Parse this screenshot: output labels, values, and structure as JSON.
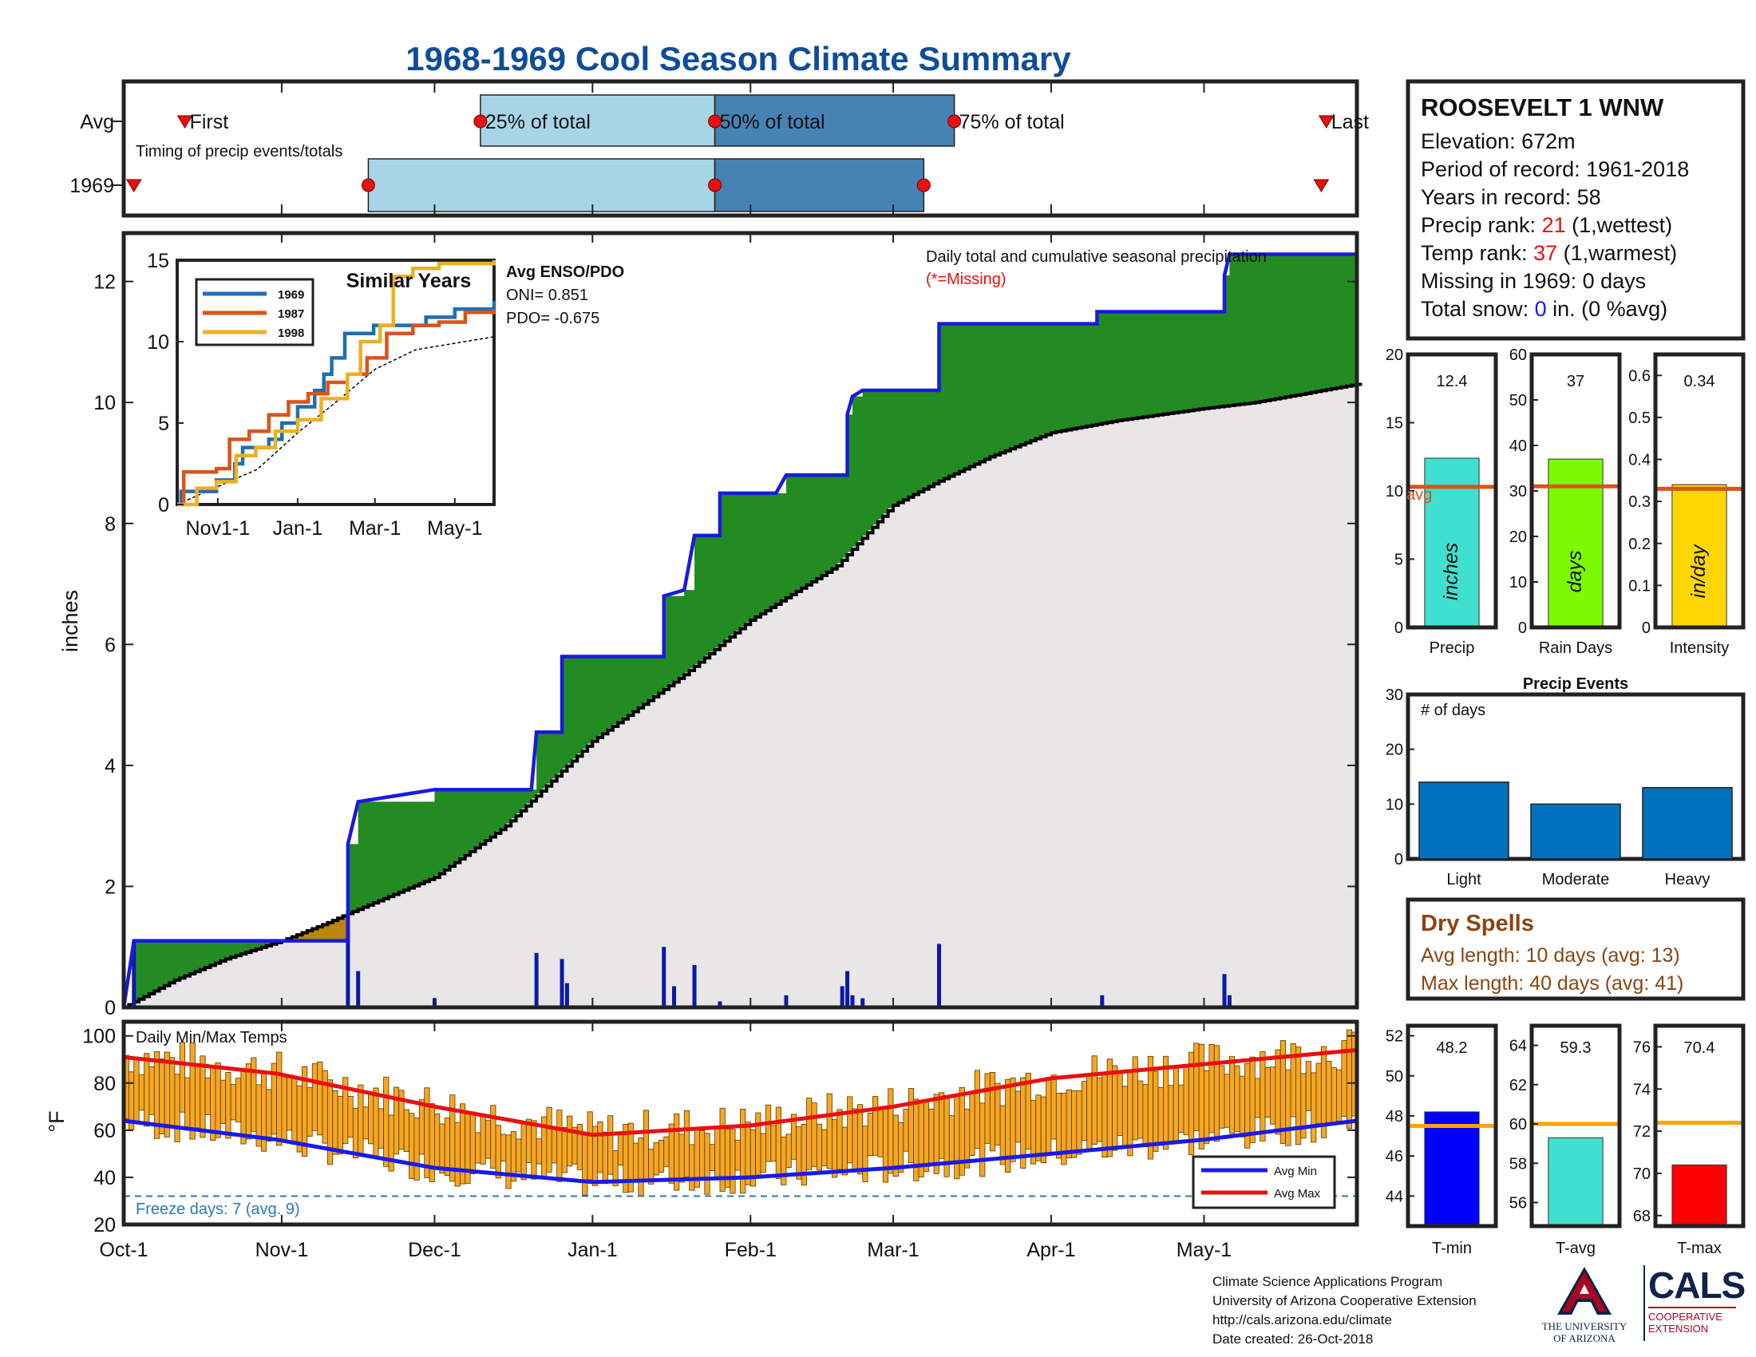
{
  "title": "1968-1969 Cool Season Climate Summary",
  "colors": {
    "title": "#0f4d9a",
    "precip_line": "#1a1adf",
    "surplus_fill": "#228b22",
    "deficit_fill": "#b8860b",
    "normal_fill": "#e8e6e6",
    "bar_daily": "#0a1aa8",
    "light_blue": "#a8d5e6",
    "dark_blue": "#4682b4",
    "temp_bar": "#f5a623",
    "avg_max": "#e81010",
    "avg_min": "#1a1ae8",
    "avg_line": "#d9541a",
    "red_text": "#e81010",
    "brown": "#8b4513",
    "ua_red": "#ab0520",
    "ua_blue": "#0c234b"
  },
  "timing": {
    "row_labels": [
      "Avg",
      "1969"
    ],
    "caption": "Timing of precip events/totals",
    "first_label": "First",
    "p25_label": "25% of total",
    "p50_label": "50% of total",
    "p75_label": "75% of total",
    "last_label": "Last",
    "avg_days": {
      "first": 12,
      "p25": 70,
      "p50": 116,
      "p75": 163,
      "last": 236
    },
    "y1969_days": {
      "first": 2,
      "p25": 48,
      "p50": 116,
      "p75": 157,
      "last": 235
    }
  },
  "chart_data": [
    {
      "type": "area",
      "name": "precipitation",
      "ylabel": "inches",
      "ylim": [
        0,
        12.8
      ],
      "yticks": [
        0,
        2,
        4,
        6,
        8,
        10,
        12
      ],
      "x_tick_labels": [
        "Oct-1",
        "Nov-1",
        "Dec-1",
        "Jan-1",
        "Feb-1",
        "Mar-1",
        "Apr-1",
        "May-1"
      ],
      "x_tick_days": [
        0,
        31,
        61,
        92,
        123,
        151,
        182,
        212
      ],
      "season_days": 242,
      "caption": "Daily total and cumulative seasonal precipitation",
      "missing_note": "(*=Missing)",
      "daily_precip": [
        {
          "day": 2,
          "value": 1.1
        },
        {
          "day": 44,
          "value": 1.6
        },
        {
          "day": 46,
          "value": 0.6
        },
        {
          "day": 61,
          "value": 0.15
        },
        {
          "day": 81,
          "value": 0.9
        },
        {
          "day": 86,
          "value": 0.8
        },
        {
          "day": 87,
          "value": 0.4
        },
        {
          "day": 106,
          "value": 1.0
        },
        {
          "day": 108,
          "value": 0.35
        },
        {
          "day": 112,
          "value": 0.7
        },
        {
          "day": 117,
          "value": 0.1
        },
        {
          "day": 130,
          "value": 0.2
        },
        {
          "day": 141,
          "value": 0.35
        },
        {
          "day": 142,
          "value": 0.6
        },
        {
          "day": 143,
          "value": 0.2
        },
        {
          "day": 145,
          "value": 0.15
        },
        {
          "day": 160,
          "value": 1.05
        },
        {
          "day": 192,
          "value": 0.2
        },
        {
          "day": 216,
          "value": 0.55
        },
        {
          "day": 217,
          "value": 0.2
        }
      ],
      "cumulative_1969": [
        [
          0,
          0
        ],
        [
          2,
          1.1
        ],
        [
          44,
          1.1
        ],
        [
          44,
          2.7
        ],
        [
          46,
          3.4
        ],
        [
          61,
          3.6
        ],
        [
          80,
          3.6
        ],
        [
          81,
          4.55
        ],
        [
          86,
          4.55
        ],
        [
          86,
          5.8
        ],
        [
          106,
          5.8
        ],
        [
          106,
          6.8
        ],
        [
          110,
          6.9
        ],
        [
          112,
          7.8
        ],
        [
          117,
          7.8
        ],
        [
          117,
          8.5
        ],
        [
          128,
          8.5
        ],
        [
          130,
          8.8
        ],
        [
          142,
          8.8
        ],
        [
          142,
          9.8
        ],
        [
          143,
          10.1
        ],
        [
          145,
          10.2
        ],
        [
          160,
          10.2
        ],
        [
          160,
          11.3
        ],
        [
          191,
          11.3
        ],
        [
          191,
          11.5
        ],
        [
          216,
          11.5
        ],
        [
          216,
          12.1
        ],
        [
          217,
          12.45
        ],
        [
          242,
          12.45
        ]
      ],
      "cumulative_normal": [
        [
          0,
          0
        ],
        [
          10,
          0.45
        ],
        [
          20,
          0.8
        ],
        [
          31,
          1.1
        ],
        [
          40,
          1.4
        ],
        [
          44,
          1.55
        ],
        [
          61,
          2.15
        ],
        [
          75,
          3.0
        ],
        [
          92,
          4.4
        ],
        [
          110,
          5.5
        ],
        [
          123,
          6.4
        ],
        [
          140,
          7.3
        ],
        [
          151,
          8.3
        ],
        [
          160,
          8.7
        ],
        [
          170,
          9.1
        ],
        [
          182,
          9.5
        ],
        [
          195,
          9.7
        ],
        [
          212,
          9.9
        ],
        [
          222,
          10.0
        ],
        [
          242,
          10.3
        ]
      ]
    },
    {
      "type": "line",
      "name": "similar-years",
      "title": "Similar Years",
      "ylim": [
        0,
        15
      ],
      "yticks": [
        0,
        5,
        10,
        15
      ],
      "x_tick_labels": [
        "Nov1-1",
        "Jan-1",
        "Mar-1",
        "May-1"
      ],
      "x_tick_days": [
        31,
        92,
        151,
        212
      ],
      "series": [
        {
          "name": "1969",
          "color": "#1f6fb4",
          "values": [
            [
              0,
              0
            ],
            [
              3,
              0.8
            ],
            [
              30,
              1.5
            ],
            [
              44,
              2.5
            ],
            [
              50,
              3.5
            ],
            [
              70,
              4.0
            ],
            [
              80,
              5.0
            ],
            [
              92,
              6.0
            ],
            [
              105,
              7.0
            ],
            [
              112,
              8.0
            ],
            [
              118,
              9.0
            ],
            [
              128,
              10.5
            ],
            [
              150,
              11.0
            ],
            [
              165,
              11.0
            ],
            [
              190,
              11.5
            ],
            [
              212,
              12.0
            ],
            [
              242,
              12.5
            ]
          ]
        },
        {
          "name": "1987",
          "color": "#d9541a",
          "values": [
            [
              0,
              0
            ],
            [
              5,
              2.0
            ],
            [
              30,
              2.2
            ],
            [
              40,
              4.0
            ],
            [
              55,
              4.5
            ],
            [
              70,
              5.5
            ],
            [
              85,
              6.3
            ],
            [
              100,
              6.8
            ],
            [
              115,
              7.5
            ],
            [
              130,
              8.0
            ],
            [
              145,
              9.0
            ],
            [
              160,
              10.5
            ],
            [
              180,
              11.0
            ],
            [
              200,
              11.2
            ],
            [
              220,
              11.8
            ],
            [
              242,
              12.0
            ]
          ]
        },
        {
          "name": "1998",
          "color": "#edb120",
          "values": [
            [
              0,
              0
            ],
            [
              15,
              1.0
            ],
            [
              30,
              1.4
            ],
            [
              45,
              3.0
            ],
            [
              60,
              3.5
            ],
            [
              75,
              4.5
            ],
            [
              92,
              5.2
            ],
            [
              110,
              6.5
            ],
            [
              130,
              8.0
            ],
            [
              140,
              10.0
            ],
            [
              155,
              11.0
            ],
            [
              165,
              14.0
            ],
            [
              180,
              14.5
            ],
            [
              200,
              14.8
            ],
            [
              242,
              15.0
            ]
          ]
        }
      ],
      "normal": [
        [
          0,
          0
        ],
        [
          31,
          1.1
        ],
        [
          61,
          2.15
        ],
        [
          92,
          4.4
        ],
        [
          123,
          6.4
        ],
        [
          151,
          8.3
        ],
        [
          182,
          9.5
        ],
        [
          212,
          9.9
        ],
        [
          242,
          10.3
        ]
      ]
    },
    {
      "type": "bar",
      "name": "season-totals",
      "charts": [
        {
          "label": "Precip",
          "value": 12.4,
          "value_label": "12.4",
          "unit": "inches",
          "avg": 10.3,
          "ylim": [
            0,
            20
          ],
          "yticks": [
            0,
            5,
            10,
            15,
            20
          ],
          "color": "#40e0d0"
        },
        {
          "label": "Rain Days",
          "value": 37,
          "value_label": "37",
          "unit": "days",
          "avg": 31,
          "ylim": [
            0,
            60
          ],
          "yticks": [
            0,
            10,
            20,
            30,
            40,
            50,
            60
          ],
          "color": "#7cfc00"
        },
        {
          "label": "Intensity",
          "value": 0.34,
          "value_label": "0.34",
          "unit": "in/day",
          "avg": 0.33,
          "ylim": [
            0,
            0.65
          ],
          "yticks": [
            0,
            0.1,
            0.2,
            0.3,
            0.4,
            0.5,
            0.6
          ],
          "color": "#ffd700"
        }
      ],
      "avg_label": "avg"
    },
    {
      "type": "bar",
      "name": "precip-events",
      "title": "Precip Events",
      "ylabel": "# of days",
      "categories": [
        "Light",
        "Moderate",
        "Heavy"
      ],
      "values": [
        14,
        10,
        13
      ],
      "ylim": [
        0,
        30
      ],
      "yticks": [
        0,
        10,
        20,
        30
      ]
    },
    {
      "type": "bar",
      "name": "daily-temps",
      "title": "Daily Min/Max Temps",
      "ylabel": "°F",
      "ylim": [
        20,
        106
      ],
      "yticks": [
        20,
        40,
        60,
        80,
        100
      ],
      "freeze_label": "Freeze days: 7 (avg. 9)",
      "freeze_line": 32,
      "legend": [
        "Avg Min",
        "Avg Max"
      ],
      "avg_max": [
        [
          0,
          91
        ],
        [
          30,
          84
        ],
        [
          61,
          70
        ],
        [
          92,
          58
        ],
        [
          123,
          62
        ],
        [
          151,
          70
        ],
        [
          182,
          82
        ],
        [
          212,
          88
        ],
        [
          242,
          94
        ]
      ],
      "avg_min": [
        [
          0,
          64
        ],
        [
          30,
          56
        ],
        [
          61,
          44
        ],
        [
          92,
          38
        ],
        [
          123,
          40
        ],
        [
          151,
          44
        ],
        [
          182,
          50
        ],
        [
          212,
          56
        ],
        [
          242,
          64
        ]
      ]
    },
    {
      "type": "bar",
      "name": "temp-averages",
      "charts": [
        {
          "label": "T-min",
          "value": 48.2,
          "value_label": "48.2",
          "avg": 47.5,
          "ylim": [
            42.5,
            52.5
          ],
          "yticks": [
            44,
            46,
            48,
            50,
            52
          ],
          "color": "#0000ff"
        },
        {
          "label": "T-avg",
          "value": 59.3,
          "value_label": "59.3",
          "avg": 60,
          "ylim": [
            54.8,
            65
          ],
          "yticks": [
            56,
            58,
            60,
            62,
            64
          ],
          "color": "#40e0d0"
        },
        {
          "label": "T-max",
          "value": 70.4,
          "value_label": "70.4",
          "avg": 72.4,
          "ylim": [
            67.5,
            77
          ],
          "yticks": [
            68,
            70,
            72,
            74,
            76
          ],
          "color": "#ff0000"
        }
      ]
    }
  ],
  "enso": {
    "heading": "Avg ENSO/PDO",
    "oni": "ONI= 0.851",
    "pdo": "PDO= -0.675"
  },
  "station": {
    "name": "ROOSEVELT 1 WNW",
    "elevation": "Elevation: 672m",
    "period": "Period of record: 1961-2018",
    "years": "Years in record: 58",
    "precip_rank_pre": "Precip rank: ",
    "precip_rank_val": "21",
    "precip_rank_post": " (1,wettest)",
    "temp_rank_pre": "Temp rank: ",
    "temp_rank_val": "37",
    "temp_rank_post": " (1,warmest)",
    "missing": "Missing in 1969: 0 days",
    "snow_pre": "Total snow: ",
    "snow_val": "0",
    "snow_post": " in. (0 %avg)"
  },
  "dry_spells": {
    "title": "Dry Spells",
    "avg": "Avg length: 10 days (avg: 13)",
    "max": "Max length: 40 days (avg: 41)"
  },
  "footer": [
    "Climate Science Applications Program",
    "University of Arizona Cooperative Extension",
    "http://cals.arizona.edu/climate",
    " Date created: 26-Oct-2018"
  ],
  "logos": {
    "ua_line1": "THE UNIVERSITY",
    "ua_line2": "OF ARIZONA",
    "cals": "CALS",
    "cals_line1": "COOPERATIVE",
    "cals_line2": "EXTENSION"
  }
}
